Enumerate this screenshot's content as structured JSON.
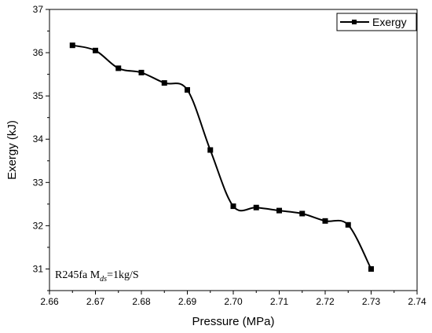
{
  "chart_data": {
    "type": "line",
    "title": "",
    "xlabel": "Pressure (MPa)",
    "ylabel": "Exergy (kJ)",
    "xlim": [
      2.66,
      2.74
    ],
    "ylim": [
      30.5,
      37
    ],
    "x_ticks": [
      "2.66",
      "2.67",
      "2.68",
      "2.69",
      "2.70",
      "2.71",
      "2.72",
      "2.73",
      "2.74"
    ],
    "y_ticks": [
      "31",
      "32",
      "33",
      "34",
      "35",
      "36",
      "37"
    ],
    "grid": false,
    "legend_position": "top-right",
    "series": [
      {
        "name": "Exergy",
        "marker": "square",
        "color": "#000000",
        "x": [
          2.665,
          2.67,
          2.675,
          2.68,
          2.685,
          2.69,
          2.695,
          2.7,
          2.705,
          2.71,
          2.715,
          2.72,
          2.725,
          2.73
        ],
        "values": [
          36.17,
          36.05,
          35.64,
          35.54,
          35.3,
          35.14,
          33.75,
          32.45,
          32.42,
          32.35,
          32.28,
          32.11,
          32.02,
          31.0
        ]
      }
    ],
    "annotation": {
      "prefix": "R245fa M",
      "subscript": "ds",
      "suffix": "=1kg/S"
    }
  }
}
